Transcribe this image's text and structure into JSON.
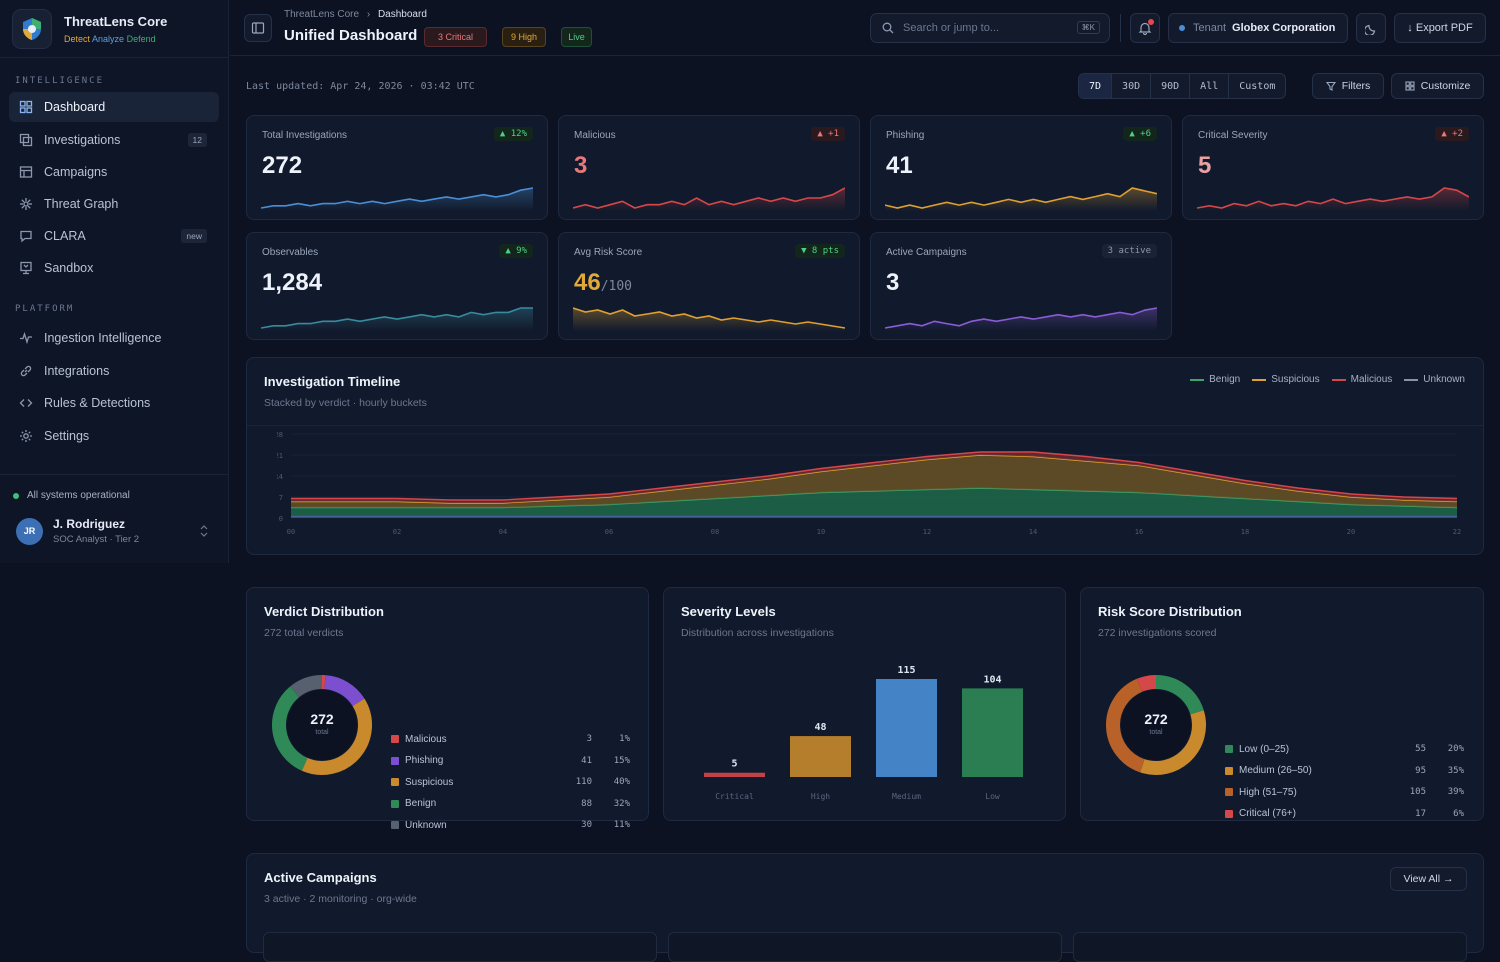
{
  "app": {
    "name": "ThreatLens Core",
    "tagline": [
      "Detect",
      "Analyze",
      "Defend"
    ]
  },
  "sidebar": {
    "sections": [
      {
        "title": "INTELLIGENCE",
        "items": [
          {
            "label": "Dashboard",
            "icon": "grid-icon",
            "active": true
          },
          {
            "label": "Investigations",
            "icon": "layers-icon",
            "badge": "12"
          },
          {
            "label": "Campaigns",
            "icon": "table-icon"
          },
          {
            "label": "Threat Graph",
            "icon": "graph-icon"
          },
          {
            "label": "CLARA",
            "icon": "chat-icon",
            "badge": "new"
          },
          {
            "label": "Sandbox",
            "icon": "sandbox-icon"
          }
        ]
      },
      {
        "title": "PLATFORM",
        "items": [
          {
            "label": "Ingestion Intelligence",
            "icon": "activity-icon"
          },
          {
            "label": "Integrations",
            "icon": "link-icon"
          },
          {
            "label": "Rules & Detections",
            "icon": "code-icon"
          },
          {
            "label": "Settings",
            "icon": "gear-icon"
          }
        ]
      }
    ],
    "status": "All systems operational",
    "user": {
      "initials": "JR",
      "name": "J. Rodriguez",
      "role": "SOC Analyst · Tier 2"
    }
  },
  "header": {
    "breadcrumb": [
      "ThreatLens Core",
      "Dashboard"
    ],
    "title": "Unified Dashboard",
    "pills": {
      "critical": "3 Critical",
      "high": "9 High",
      "live": "Live"
    },
    "search_placeholder": "Search or jump to...",
    "search_shortcut": "⌘K",
    "tenant_label": "Tenant",
    "tenant_name": "Globex Corporation",
    "export_label": "↓ Export PDF"
  },
  "toolbar": {
    "last_updated": "Last updated: Apr 24, 2026 · 03:42 UTC",
    "ranges": [
      "7D",
      "30D",
      "90D",
      "All",
      "Custom"
    ],
    "filters_label": "Filters",
    "customize_label": "Customize"
  },
  "kpis": [
    {
      "label": "Total Investigations",
      "value": "272",
      "delta": "▲ 12%",
      "trend": "up",
      "color": "#4a8fd6",
      "spark": [
        5,
        6,
        6,
        7,
        6,
        7,
        7,
        8,
        7,
        8,
        7,
        8,
        9,
        8,
        9,
        10,
        9,
        10,
        11,
        10,
        11,
        13,
        14
      ]
    },
    {
      "label": "Malicious",
      "value": "3",
      "delta": "▲ +1",
      "trend": "bad",
      "color": "#d6474a",
      "spark": [
        5,
        6,
        5,
        6,
        7,
        5,
        6,
        6,
        7,
        6,
        8,
        6,
        7,
        6,
        7,
        8,
        7,
        8,
        7,
        8,
        8,
        9,
        11
      ]
    },
    {
      "label": "Phishing",
      "value": "41",
      "delta": "▲ +6",
      "trend": "up",
      "color": "#e0a030",
      "spark": [
        7,
        6,
        7,
        6,
        7,
        8,
        7,
        8,
        7,
        8,
        9,
        8,
        9,
        8,
        9,
        10,
        9,
        10,
        11,
        10,
        13,
        12,
        11
      ]
    },
    {
      "label": "Critical Severity",
      "value": "5",
      "delta": "▲ +2",
      "trend": "bad",
      "color": "#d6474a",
      "spark": [
        4,
        5,
        4,
        6,
        5,
        7,
        5,
        6,
        5,
        7,
        6,
        8,
        6,
        7,
        8,
        7,
        8,
        9,
        8,
        9,
        13,
        12,
        9
      ]
    },
    {
      "label": "Observables",
      "value": "1,284",
      "delta": "▲ 9%",
      "trend": "up",
      "color": "#3a8a9e",
      "spark": [
        4,
        5,
        5,
        6,
        6,
        7,
        7,
        8,
        7,
        8,
        9,
        8,
        9,
        10,
        9,
        10,
        9,
        11,
        10,
        11,
        11,
        13,
        13
      ]
    },
    {
      "label": "Avg Risk Score",
      "value": "46",
      "value_sub": "/100",
      "delta": "▼ 8 pts",
      "trend": "up",
      "color": "#e0a030",
      "spark": [
        14,
        12,
        13,
        11,
        13,
        10,
        11,
        12,
        10,
        11,
        9,
        10,
        8,
        9,
        8,
        7,
        8,
        7,
        6,
        7,
        6,
        5,
        4
      ]
    },
    {
      "label": "Active Campaigns",
      "value": "3",
      "delta": "3 active",
      "trend": "neutral",
      "color": "#8a5cd6",
      "spark": [
        5,
        6,
        7,
        6,
        8,
        7,
        6,
        8,
        9,
        8,
        9,
        10,
        9,
        10,
        11,
        10,
        11,
        10,
        11,
        12,
        11,
        13,
        14
      ]
    }
  ],
  "timeline": {
    "title": "Investigation Timeline",
    "subtitle": "Stacked by verdict · hourly buckets",
    "legend": [
      {
        "name": "Benign",
        "color": "#3aa66a"
      },
      {
        "name": "Suspicious",
        "color": "#e0a030"
      },
      {
        "name": "Malicious",
        "color": "#d6474a"
      },
      {
        "name": "Unknown",
        "color": "#8a93a6"
      }
    ],
    "y_ticks": [
      "28",
      "21",
      "14",
      "7",
      "0"
    ],
    "x_ticks": [
      "00",
      "02",
      "04",
      "06",
      "08",
      "10",
      "12",
      "14",
      "16",
      "18",
      "20",
      "22"
    ]
  },
  "verdict": {
    "title": "Verdict Distribution",
    "subtitle": "272 total verdicts",
    "total": "272",
    "total_label": "total",
    "items": [
      {
        "name": "Malicious",
        "count": "3",
        "pct": "1%",
        "value": 3,
        "color": "#d6474a"
      },
      {
        "name": "Phishing",
        "count": "41",
        "pct": "15%",
        "value": 41,
        "color": "#7c4fd0"
      },
      {
        "name": "Suspicious",
        "count": "110",
        "pct": "40%",
        "value": 110,
        "color": "#c88a2c"
      },
      {
        "name": "Benign",
        "count": "88",
        "pct": "32%",
        "value": 88,
        "color": "#2f8a57"
      },
      {
        "name": "Unknown",
        "count": "30",
        "pct": "11%",
        "value": 30,
        "color": "#56606f"
      }
    ]
  },
  "severity": {
    "title": "Severity Levels",
    "subtitle": "Distribution across investigations"
  },
  "risk": {
    "title": "Risk Score Distribution",
    "subtitle": "272 investigations scored",
    "total": "272",
    "total_label": "total",
    "items": [
      {
        "name": "Low (0–25)",
        "count": "55",
        "pct": "20%",
        "value": 55,
        "color": "#2f8a57"
      },
      {
        "name": "Medium (26–50)",
        "count": "95",
        "pct": "35%",
        "value": 95,
        "color": "#c88a2c"
      },
      {
        "name": "High (51–75)",
        "count": "105",
        "pct": "39%",
        "value": 105,
        "color": "#b8622a"
      },
      {
        "name": "Critical (76+)",
        "count": "17",
        "pct": "6%",
        "value": 17,
        "color": "#d6474a"
      }
    ]
  },
  "campaigns": {
    "title": "Active Campaigns",
    "subtitle": "3 active · 2 monitoring · org-wide",
    "view_all": "View All →"
  },
  "chart_data": [
    {
      "type": "area",
      "x": [
        "00",
        "01",
        "02",
        "03",
        "04",
        "05",
        "06",
        "07",
        "08",
        "09",
        "10",
        "11",
        "12",
        "13",
        "14",
        "15",
        "16",
        "17",
        "18",
        "19",
        "20",
        "21",
        "22"
      ],
      "series": [
        {
          "name": "Benign",
          "values": [
            3,
            3,
            3,
            3,
            3,
            3.5,
            4,
            5,
            6,
            7,
            8,
            8.5,
            9,
            9.5,
            9,
            8.5,
            8,
            7,
            6,
            5,
            4,
            3.5,
            3
          ]
        },
        {
          "name": "Suspicious",
          "values": [
            2,
            2,
            2,
            1.5,
            1.5,
            2,
            2.5,
            3.5,
            4.5,
            5.5,
            7,
            8.5,
            10,
            11,
            11,
            10,
            9,
            7,
            5,
            3.5,
            2.5,
            2,
            2
          ]
        },
        {
          "name": "Malicious",
          "values": [
            1,
            1,
            1,
            1,
            1,
            1,
            1,
            1,
            1,
            1,
            1,
            1,
            1,
            1,
            1.5,
            1.5,
            1,
            1,
            1,
            1,
            1,
            1,
            1
          ]
        },
        {
          "name": "Unknown",
          "values": [
            0.5,
            0.5,
            0.5,
            0.5,
            0.5,
            0.5,
            0.5,
            0.5,
            0.5,
            0.5,
            0.5,
            0.5,
            0.5,
            0.5,
            0.5,
            0.5,
            0.5,
            0.5,
            0.5,
            0.5,
            0.5,
            0.5,
            0.5
          ]
        }
      ],
      "ylim": [
        0,
        28
      ]
    },
    {
      "type": "bar",
      "categories": [
        "Critical",
        "High",
        "Medium",
        "Low"
      ],
      "values": [
        5,
        48,
        115,
        104
      ],
      "colors": [
        "#d6474a",
        "#c88a2c",
        "#4a8fd6",
        "#2f8a57"
      ]
    }
  ]
}
